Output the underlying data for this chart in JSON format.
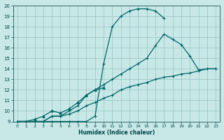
{
  "xlabel": "Humidex (Indice chaleur)",
  "bg_color": "#c8e8e8",
  "grid_color": "#a0c8c8",
  "line_color": "#006666",
  "xlim": [
    -0.5,
    23.5
  ],
  "ylim": [
    9,
    20
  ],
  "xticks": [
    0,
    1,
    2,
    3,
    4,
    5,
    6,
    7,
    8,
    9,
    10,
    11,
    12,
    13,
    14,
    15,
    16,
    17,
    18,
    19,
    20,
    21,
    22,
    23
  ],
  "yticks": [
    9,
    10,
    11,
    12,
    13,
    14,
    15,
    16,
    17,
    18,
    19,
    20
  ],
  "curve1_x": [
    0,
    1,
    2,
    3,
    4,
    5,
    6,
    7,
    8,
    9,
    10,
    11,
    12,
    13,
    14,
    15,
    16,
    17
  ],
  "curve1_y": [
    9,
    9,
    9,
    9,
    9,
    9,
    9,
    9,
    9,
    9.5,
    14.5,
    18.0,
    19.0,
    19.5,
    19.7,
    19.7,
    19.5,
    18.8
  ],
  "curve2_x": [
    0,
    1,
    2,
    3,
    4,
    5,
    6,
    7,
    8,
    9,
    10,
    11,
    12,
    13,
    14,
    15,
    16,
    17,
    18,
    19,
    20,
    21,
    22,
    23
  ],
  "curve2_y": [
    9,
    9,
    9,
    9,
    9.5,
    9.5,
    10.0,
    10.5,
    11.5,
    12.0,
    12.5,
    13.0,
    13.5,
    14.0,
    14.5,
    15.0,
    16.2,
    17.3,
    16.8,
    16.3,
    15.2,
    13.9,
    14.0,
    14.0
  ],
  "curve3_x": [
    0,
    1,
    2,
    3,
    4,
    5,
    6,
    7,
    8,
    9,
    10,
    11,
    12,
    13,
    14,
    15,
    16,
    17,
    18,
    19,
    20,
    21,
    22,
    23
  ],
  "curve3_y": [
    9,
    9,
    9,
    9,
    9.5,
    9.5,
    9.7,
    10.0,
    10.5,
    10.8,
    11.2,
    11.5,
    12.0,
    12.3,
    12.5,
    12.7,
    13.0,
    13.2,
    13.3,
    13.5,
    13.6,
    13.8,
    14.0,
    14.0
  ],
  "curve4_x": [
    0,
    1,
    2,
    3,
    4,
    5,
    6,
    7,
    8,
    9,
    10
  ],
  "curve4_y": [
    9,
    9,
    9.2,
    9.5,
    10.0,
    9.8,
    10.2,
    10.8,
    11.5,
    12.0,
    12.2
  ]
}
